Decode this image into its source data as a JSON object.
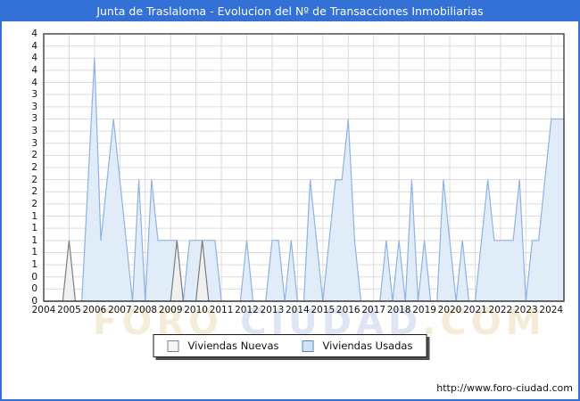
{
  "title": "Junta de Traslaloma - Evolucion del Nº de Transacciones Inmobiliarias",
  "watermark": {
    "part1": "FORO",
    "part2": " CIUDAD",
    "part3": ".COM"
  },
  "footer": {
    "url": "http://www.foro-ciudad.com"
  },
  "colors": {
    "frame_blue": "#3371d6",
    "grid": "#dcdcdc",
    "plot_border": "#333333",
    "usadas_fill": "#e1ecf9",
    "usadas_stroke": "#8fb2e2",
    "nuevas_fill": "#f0f0f0",
    "nuevas_stroke": "#7d7d7d"
  },
  "legend": {
    "items": [
      {
        "label": "Viviendas Nuevas",
        "swatch_fill": "#f5f5f5",
        "swatch_border": "#808080"
      },
      {
        "label": "Viviendas Usadas",
        "swatch_fill": "#cfe2f6",
        "swatch_border": "#5b87c5"
      }
    ]
  },
  "chart_data": {
    "type": "area",
    "title": "Junta de Traslaloma - Evolucion del Nº de Transacciones Inmobiliarias",
    "x_unit": "quarter",
    "x_start": "2004Q1",
    "x_end": "2024Q3",
    "years": [
      "2004",
      "2005",
      "2006",
      "2007",
      "2008",
      "2009",
      "2010",
      "2011",
      "2012",
      "2013",
      "2014",
      "2015",
      "2016",
      "2017",
      "2018",
      "2019",
      "2020",
      "2021",
      "2022",
      "2023",
      "2024"
    ],
    "ylim": [
      0,
      4.4
    ],
    "ytick_step": 0.2,
    "ytick_labels": [
      "4",
      "4",
      "4",
      "4",
      "4",
      "3",
      "3",
      "3",
      "3",
      "3",
      "2",
      "2",
      "2",
      "2",
      "2",
      "1",
      "1",
      "1",
      "1",
      "1",
      "0",
      "0",
      "0"
    ],
    "grid": true,
    "legend_position": "bottom",
    "series": [
      {
        "name": "Viviendas Nuevas",
        "fill": "#f0f0f0",
        "stroke": "#7d7d7d",
        "values": [
          0,
          0,
          0,
          0,
          1,
          0,
          0,
          0,
          0,
          0,
          0,
          0,
          0,
          0,
          0,
          0,
          0,
          0,
          0,
          0,
          0,
          1,
          0,
          0,
          0,
          1,
          0,
          0,
          0,
          0,
          0,
          0,
          0,
          0,
          0,
          0,
          0,
          0,
          0,
          0,
          0,
          0,
          0,
          0,
          0,
          0,
          0,
          0,
          0,
          0,
          0,
          0,
          0,
          0,
          0,
          0,
          0,
          0,
          0,
          0,
          0,
          0,
          0,
          0,
          0,
          0,
          0,
          0,
          0,
          0,
          0,
          0,
          0,
          0,
          0,
          0,
          0,
          0,
          0,
          0,
          0,
          0,
          0
        ]
      },
      {
        "name": "Viviendas Usadas",
        "fill": "#e1ecf9",
        "stroke": "#8fb2e2",
        "values": [
          0,
          0,
          0,
          0,
          0,
          0,
          0,
          2,
          4,
          1,
          2,
          3,
          2,
          1,
          0,
          2,
          0,
          2,
          1,
          1,
          1,
          1,
          0,
          1,
          1,
          1,
          1,
          1,
          0,
          0,
          0,
          0,
          1,
          0,
          0,
          0,
          1,
          1,
          0,
          1,
          0,
          0,
          2,
          1,
          0,
          1,
          2,
          2,
          3,
          1,
          0,
          0,
          0,
          0,
          1,
          0,
          1,
          0,
          2,
          0,
          1,
          0,
          0,
          2,
          1,
          0,
          1,
          0,
          0,
          1,
          2,
          1,
          1,
          1,
          1,
          2,
          0,
          1,
          1,
          2,
          3,
          3,
          3
        ]
      }
    ]
  }
}
